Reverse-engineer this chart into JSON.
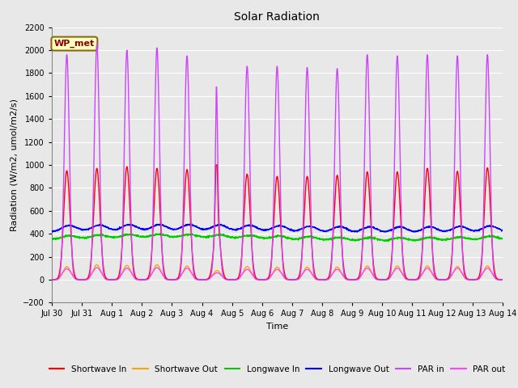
{
  "title": "Solar Radiation",
  "ylabel": "Radiation (W/m2, umol/m2/s)",
  "xlabel": "Time",
  "ylim": [
    -200,
    2200
  ],
  "yticks": [
    -200,
    0,
    200,
    400,
    600,
    800,
    1000,
    1200,
    1400,
    1600,
    1800,
    2000,
    2200
  ],
  "x_tick_labels": [
    "Jul 30",
    "Jul 31",
    "Aug 1",
    "Aug 2",
    "Aug 3",
    "Aug 4",
    "Aug 5",
    "Aug 6",
    "Aug 7",
    "Aug 8",
    "Aug 9",
    "Aug 10",
    "Aug 11",
    "Aug 12",
    "Aug 13",
    "Aug 14"
  ],
  "annotation_text": "WP_met",
  "annotation_color": "#8B0000",
  "annotation_bg": "#FFFFC0",
  "annotation_border": "#8B6914",
  "fig_bg": "#E8E8E8",
  "plot_bg": "#E8E8E8",
  "grid_color": "#FFFFFF",
  "series": {
    "shortwave_in": {
      "color": "#FF0000",
      "label": "Shortwave In",
      "lw": 1.0
    },
    "shortwave_out": {
      "color": "#FFA500",
      "label": "Shortwave Out",
      "lw": 1.0
    },
    "longwave_in": {
      "color": "#00CC00",
      "label": "Longwave In",
      "lw": 1.0
    },
    "longwave_out": {
      "color": "#0000FF",
      "label": "Longwave Out",
      "lw": 1.0
    },
    "par_in": {
      "color": "#CC44FF",
      "label": "PAR in",
      "lw": 1.0
    },
    "par_out": {
      "color": "#FF44FF",
      "label": "PAR out",
      "lw": 1.0
    }
  }
}
